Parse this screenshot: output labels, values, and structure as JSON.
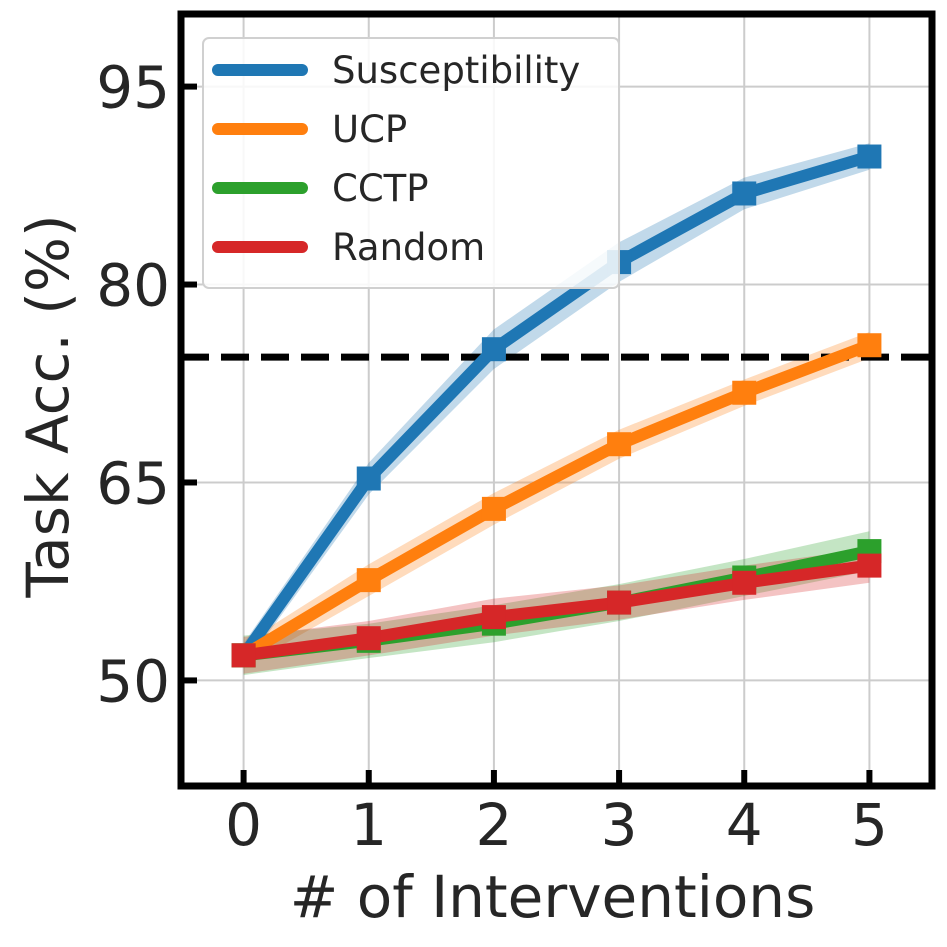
{
  "chart_data": {
    "type": "line",
    "xlabel": "# of Interventions",
    "ylabel": "Task Acc. (%)",
    "x": [
      0,
      1,
      2,
      3,
      4,
      5
    ],
    "xlim": [
      -0.5,
      5.5
    ],
    "ylim": [
      42,
      100.5
    ],
    "xticks": [
      0,
      1,
      2,
      3,
      4,
      5
    ],
    "yticks": [
      50,
      65,
      80,
      95
    ],
    "grid": true,
    "legend_position": "top-left",
    "reference_line": {
      "y": 74.5,
      "style": "dashed",
      "color": "#000000"
    },
    "series": [
      {
        "name": "Susceptibility",
        "color": "#1f77b4",
        "values": [
          51.9,
          65.3,
          75.1,
          81.7,
          86.9,
          89.7
        ],
        "band": [
          0.9,
          1.2,
          1.5,
          1.5,
          1.2,
          1.0
        ]
      },
      {
        "name": "UCP",
        "color": "#ff7f0e",
        "values": [
          51.9,
          57.6,
          63.0,
          67.9,
          71.8,
          75.4
        ],
        "band": [
          0.9,
          1.2,
          1.2,
          1.1,
          1.0,
          1.0
        ]
      },
      {
        "name": "CCTP",
        "color": "#2ca02c",
        "values": [
          51.9,
          53.0,
          54.3,
          55.9,
          57.8,
          59.8
        ],
        "band": [
          1.5,
          1.3,
          1.4,
          1.4,
          1.4,
          1.5
        ]
      },
      {
        "name": "Random",
        "color": "#d62728",
        "values": [
          51.9,
          53.2,
          54.8,
          55.9,
          57.4,
          58.7
        ],
        "band": [
          1.4,
          1.3,
          1.4,
          1.3,
          1.3,
          1.3
        ]
      }
    ]
  }
}
